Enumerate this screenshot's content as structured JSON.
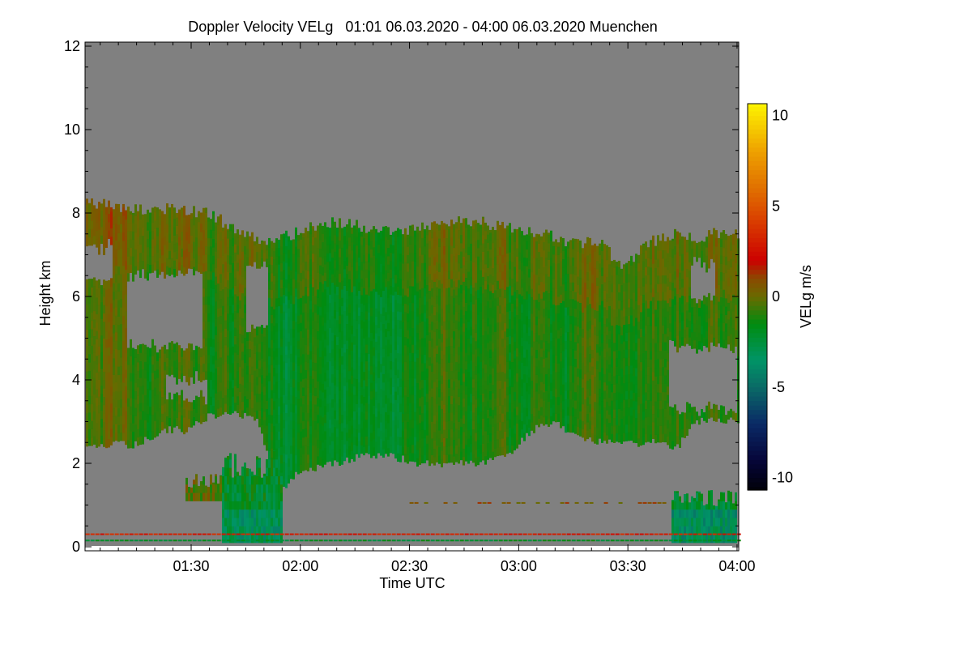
{
  "chart_data": {
    "type": "heatmap",
    "title": "Doppler Velocity VELg   01:01 06.03.2020 - 04:00 06.03.2020 Muenchen",
    "xlabel": "Time UTC",
    "ylabel": "Height km",
    "xlim": [
      "01:01",
      "04:00"
    ],
    "ylim": [
      -0.1,
      12.1
    ],
    "xticks": [
      "01:30",
      "02:00",
      "02:30",
      "03:00",
      "03:30",
      "04:00"
    ],
    "yticks": [
      0,
      2,
      4,
      6,
      8,
      10,
      12
    ],
    "background_color": "#808080",
    "colorbar": {
      "label": "VELg m/s",
      "vmin": -11,
      "vmax": 11,
      "ticks": [
        -10,
        -5,
        0,
        5,
        10
      ],
      "stops": [
        {
          "v": -11,
          "c": "#000000"
        },
        {
          "v": -9,
          "c": "#06063a"
        },
        {
          "v": -7,
          "c": "#0a2a66"
        },
        {
          "v": -5,
          "c": "#0a6a66"
        },
        {
          "v": -3.5,
          "c": "#009466"
        },
        {
          "v": -1.5,
          "c": "#008c10"
        },
        {
          "v": 0,
          "c": "#6a6a00"
        },
        {
          "v": 1,
          "c": "#8a4a00"
        },
        {
          "v": 2,
          "c": "#cc0000"
        },
        {
          "v": 4,
          "c": "#d83800"
        },
        {
          "v": 6,
          "c": "#e07000"
        },
        {
          "v": 8,
          "c": "#eea000"
        },
        {
          "v": 11,
          "c": "#ffff00"
        }
      ]
    },
    "cloud_profiles": {
      "bin_start": [
        "01:01",
        "01:06",
        "01:11",
        "01:16",
        "01:21",
        "01:26",
        "01:31",
        "01:36",
        "01:41",
        "01:46",
        "01:51",
        "01:56",
        "02:01",
        "02:06",
        "02:11",
        "02:16",
        "02:21",
        "02:26",
        "02:31",
        "02:36",
        "02:41",
        "02:46",
        "02:51",
        "02:56",
        "03:01",
        "03:06",
        "03:11",
        "03:16",
        "03:21",
        "03:26",
        "03:31",
        "03:36",
        "03:41",
        "03:46",
        "03:51",
        "03:56"
      ],
      "top_km": [
        8.2,
        8.2,
        8.1,
        8.05,
        8.1,
        8.1,
        8.0,
        7.8,
        7.6,
        7.3,
        7.4,
        7.5,
        7.7,
        7.75,
        7.75,
        7.6,
        7.6,
        7.6,
        7.7,
        7.75,
        7.85,
        7.8,
        7.7,
        7.6,
        7.5,
        7.5,
        7.3,
        7.3,
        7.2,
        6.6,
        7.2,
        7.4,
        7.5,
        7.4,
        7.5,
        7.5
      ],
      "base_km": [
        2.45,
        2.45,
        2.45,
        2.6,
        2.8,
        2.8,
        3.1,
        3.2,
        3.2,
        3.0,
        1.2,
        1.7,
        1.9,
        2.0,
        2.1,
        2.2,
        2.2,
        2.1,
        2.0,
        2.0,
        2.0,
        2.0,
        2.1,
        2.3,
        2.8,
        3.0,
        2.8,
        2.6,
        2.5,
        2.5,
        2.5,
        2.5,
        2.4,
        3.0,
        3.1,
        3.0
      ],
      "mean_velocity": [
        -0.3,
        -0.5,
        -0.6,
        -0.6,
        -0.7,
        -0.6,
        -0.8,
        -1.0,
        -1.0,
        -1.4,
        -1.8,
        -1.8,
        -1.6,
        -1.7,
        -1.8,
        -1.8,
        -1.9,
        -1.9,
        -1.5,
        -1.0,
        -0.5,
        -0.9,
        -1.4,
        -1.5,
        -1.4,
        -1.2,
        -1.3,
        -1.0,
        -0.9,
        -0.8,
        -0.8,
        -0.6,
        -0.4,
        -0.8,
        -0.9,
        -0.8
      ]
    },
    "gaps": [
      {
        "t0": "01:01",
        "t1": "01:08",
        "h0": 6.4,
        "h1": 7.2
      },
      {
        "t0": "01:12",
        "t1": "01:33",
        "h0": 4.8,
        "h1": 6.5
      },
      {
        "t0": "01:23",
        "t1": "01:34",
        "h0": 3.6,
        "h1": 4.0
      },
      {
        "t0": "01:45",
        "t1": "01:51",
        "h0": 5.3,
        "h1": 6.8
      },
      {
        "t0": "03:41",
        "t1": "04:00",
        "h0": 3.3,
        "h1": 4.8
      },
      {
        "t0": "03:47",
        "t1": "03:54",
        "h0": 6.0,
        "h1": 6.8
      }
    ],
    "precipitation": [
      {
        "t0": "01:28",
        "t1": "01:38",
        "bottom_km": 1.1,
        "top_km": 1.7,
        "velocity": -0.3
      },
      {
        "t0": "01:38",
        "t1": "01:55",
        "bottom_km": 0.1,
        "top_km": 2.2,
        "velocity": -2.0
      },
      {
        "t0": "03:42",
        "t1": "04:00",
        "bottom_km": 0.1,
        "top_km": 1.3,
        "velocity": -2.3
      }
    ],
    "clutter_lines": [
      {
        "height_km": 0.3,
        "velocity": 3.0,
        "t0": "01:01",
        "t1": "04:00"
      },
      {
        "height_km": 0.15,
        "velocity": -2.0,
        "t0": "01:01",
        "t1": "04:00"
      },
      {
        "height_km": 1.05,
        "velocity": 0.6,
        "t0": "02:30",
        "t1": "03:40"
      }
    ]
  }
}
